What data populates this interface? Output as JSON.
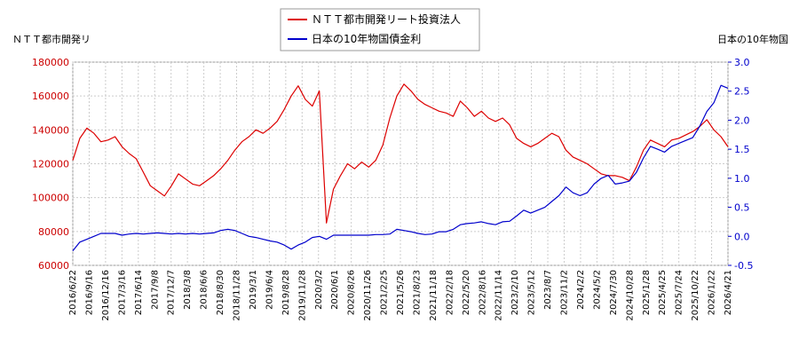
{
  "chart_data": {
    "type": "line",
    "title": "",
    "y_left_label": "ＮＴＴ都市開発リ",
    "y_right_label": "日本の10年物国",
    "legend_position": "top-center",
    "grid": true,
    "y_left_range": [
      60000,
      180000
    ],
    "y_right_range": [
      -0.5,
      3.0
    ],
    "y_left_ticks": [
      "60000",
      "80000",
      "100000",
      "120000",
      "140000",
      "160000",
      "180000"
    ],
    "y_right_ticks": [
      "-0.5",
      "0.0",
      "0.5",
      "1.0",
      "1.5",
      "2.0",
      "2.5",
      "3.0"
    ],
    "x_ticks": [
      "2016/6/22",
      "2016/9/16",
      "2016/12/16",
      "2017/3/16",
      "2017/6/14",
      "2017/9/8",
      "2017/12/7",
      "2018/3/8",
      "2018/6/6",
      "2018/8/30",
      "2018/11/28",
      "2019/3/1",
      "2019/6/4",
      "2019/8/28",
      "2019/11/28",
      "2020/3/2",
      "2020/6/1",
      "2020/8/26",
      "2020/11/26",
      "2021/2/25",
      "2021/5/26",
      "2021/8/23",
      "2021/11/18",
      "2022/2/18",
      "2022/5/20",
      "2022/8/16",
      "2022/11/14",
      "2023/2/10",
      "2023/5/12",
      "2023/8/7",
      "2023/11/2",
      "2024/2/2",
      "2024/5/2",
      "2024/7/30",
      "2024/10/28",
      "2025/1/28",
      "2025/4/25",
      "2025/7/24",
      "2025/10/22",
      "2026/1/22",
      "2026/4/21"
    ],
    "series": [
      {
        "name": "ＮＴＴ都市開発リート投資法人",
        "axis": "left",
        "color": "#dd0000",
        "values": [
          122000,
          135000,
          141000,
          138000,
          133000,
          134000,
          136000,
          130000,
          126000,
          123000,
          115000,
          107000,
          104000,
          101000,
          107000,
          114000,
          111000,
          108000,
          107000,
          110000,
          113000,
          117000,
          122000,
          128000,
          133000,
          136000,
          140000,
          138000,
          141000,
          145000,
          152000,
          160000,
          166000,
          158000,
          154000,
          163000,
          85000,
          105000,
          113000,
          120000,
          117000,
          121000,
          118000,
          122000,
          131000,
          147000,
          160000,
          167000,
          163000,
          158000,
          155000,
          153000,
          151000,
          150000,
          148000,
          157000,
          153000,
          148000,
          151000,
          147000,
          145000,
          147000,
          143000,
          135000,
          132000,
          130000,
          132000,
          135000,
          138000,
          136000,
          128000,
          124000,
          122000,
          120000,
          117000,
          114000,
          113000,
          113000,
          112000,
          110000,
          118000,
          128000,
          134000,
          132000,
          130000,
          134000,
          135000,
          137000,
          139000,
          142000,
          146000,
          140000,
          136000,
          130000
        ]
      },
      {
        "name": "日本の10年物国債金利",
        "axis": "right",
        "color": "#0000cc",
        "values": [
          -0.25,
          -0.1,
          -0.05,
          0.0,
          0.05,
          0.05,
          0.05,
          0.02,
          0.04,
          0.05,
          0.04,
          0.05,
          0.06,
          0.05,
          0.04,
          0.05,
          0.04,
          0.05,
          0.04,
          0.05,
          0.06,
          0.1,
          0.12,
          0.1,
          0.05,
          0.0,
          -0.02,
          -0.05,
          -0.08,
          -0.1,
          -0.15,
          -0.22,
          -0.15,
          -0.1,
          -0.02,
          0.0,
          -0.05,
          0.02,
          0.02,
          0.02,
          0.02,
          0.02,
          0.02,
          0.03,
          0.03,
          0.04,
          0.12,
          0.1,
          0.08,
          0.05,
          0.03,
          0.04,
          0.08,
          0.08,
          0.12,
          0.2,
          0.22,
          0.23,
          0.25,
          0.22,
          0.2,
          0.25,
          0.26,
          0.35,
          0.45,
          0.4,
          0.45,
          0.5,
          0.6,
          0.7,
          0.85,
          0.75,
          0.7,
          0.75,
          0.9,
          1.0,
          1.05,
          0.9,
          0.92,
          0.95,
          1.1,
          1.35,
          1.55,
          1.5,
          1.45,
          1.55,
          1.6,
          1.65,
          1.7,
          1.9,
          2.15,
          2.3,
          2.6,
          2.55
        ]
      }
    ]
  }
}
